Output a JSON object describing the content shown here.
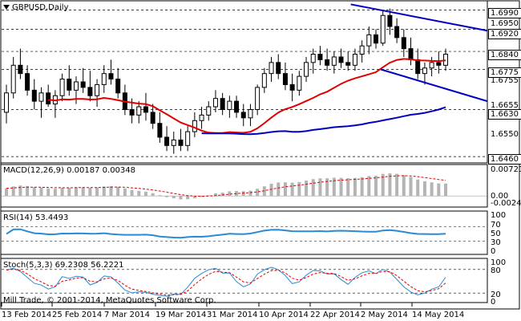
{
  "window": {
    "symbol_title": "GBPUSD,Daily",
    "copyright": "Mill Trade, © 2001-2014, MetaQuotes Software Corp."
  },
  "price_axis": {
    "ticks": [
      "1.6990",
      "1.6950",
      "1.6920",
      "1.6840",
      "1.6775",
      "1.6755",
      "1.6655",
      "1.6630",
      "1.6550",
      "1.6460"
    ],
    "highlighted": [
      "1.6990",
      "1.6920",
      "1.6840",
      "1.6775",
      "1.6630",
      "1.6460"
    ]
  },
  "macd": {
    "label": "MACD(12,26,9) 0.00187 0.00348",
    "ticks": [
      "0.00721",
      "0.00",
      "-0.00243"
    ]
  },
  "rsi": {
    "label": "RSI(14) 53.4493",
    "ticks": [
      "100",
      "70",
      "50",
      "30",
      "0"
    ]
  },
  "stoch": {
    "label": "Stoch(5,3,3) 69.2308 56.2221",
    "ticks": [
      "100",
      "80",
      "20",
      "0"
    ]
  },
  "dates": [
    "13 Feb 2014",
    "25 Feb 2014",
    "7 Mar 2014",
    "19 Mar 2014",
    "31 Mar 2014",
    "10 Apr 2014",
    "22 Apr 2014",
    "2 May 2014",
    "14 May 2014"
  ],
  "colors": {
    "ma_fast": "#e00000",
    "ma_slow": "#0000c0",
    "trend": "#0000c0",
    "rsi": "#2a8ad4",
    "stoch_main": "#2a8ad4",
    "stoch_signal": "#e00000",
    "macd_hist": "#b4b4b4",
    "macd_signal": "#e00000"
  },
  "chart_data": [
    {
      "type": "candlestick",
      "title": "GBPUSD,Daily",
      "ylim": [
        1.644,
        1.702
      ],
      "ohlc": [
        [
          1.662,
          1.672,
          1.658,
          1.669
        ],
        [
          1.669,
          1.682,
          1.667,
          1.679
        ],
        [
          1.679,
          1.685,
          1.674,
          1.676
        ],
        [
          1.676,
          1.679,
          1.668,
          1.67
        ],
        [
          1.67,
          1.674,
          1.663,
          1.666
        ],
        [
          1.666,
          1.671,
          1.66,
          1.669
        ],
        [
          1.669,
          1.672,
          1.664,
          1.665
        ],
        [
          1.665,
          1.67,
          1.66,
          1.668
        ],
        [
          1.668,
          1.676,
          1.666,
          1.674
        ],
        [
          1.674,
          1.679,
          1.668,
          1.67
        ],
        [
          1.67,
          1.675,
          1.665,
          1.673
        ],
        [
          1.673,
          1.678,
          1.669,
          1.671
        ],
        [
          1.671,
          1.677,
          1.666,
          1.668
        ],
        [
          1.668,
          1.674,
          1.664,
          1.672
        ],
        [
          1.672,
          1.679,
          1.669,
          1.676
        ],
        [
          1.676,
          1.681,
          1.672,
          1.674
        ],
        [
          1.674,
          1.678,
          1.667,
          1.669
        ],
        [
          1.669,
          1.672,
          1.661,
          1.663
        ],
        [
          1.663,
          1.667,
          1.658,
          1.661
        ],
        [
          1.661,
          1.666,
          1.658,
          1.664
        ],
        [
          1.664,
          1.669,
          1.659,
          1.662
        ],
        [
          1.662,
          1.665,
          1.656,
          1.658
        ],
        [
          1.658,
          1.662,
          1.651,
          1.653
        ],
        [
          1.653,
          1.657,
          1.648,
          1.65
        ],
        [
          1.65,
          1.655,
          1.647,
          1.652
        ],
        [
          1.652,
          1.656,
          1.648,
          1.65
        ],
        [
          1.65,
          1.657,
          1.648,
          1.655
        ],
        [
          1.655,
          1.662,
          1.653,
          1.659
        ],
        [
          1.659,
          1.664,
          1.656,
          1.661
        ],
        [
          1.661,
          1.666,
          1.659,
          1.664
        ],
        [
          1.664,
          1.67,
          1.662,
          1.667
        ],
        [
          1.667,
          1.669,
          1.661,
          1.663
        ],
        [
          1.663,
          1.668,
          1.66,
          1.666
        ],
        [
          1.666,
          1.668,
          1.66,
          1.662
        ],
        [
          1.662,
          1.665,
          1.657,
          1.66
        ],
        [
          1.66,
          1.665,
          1.657,
          1.663
        ],
        [
          1.663,
          1.672,
          1.661,
          1.671
        ],
        [
          1.671,
          1.678,
          1.669,
          1.676
        ],
        [
          1.676,
          1.682,
          1.673,
          1.68
        ],
        [
          1.68,
          1.683,
          1.674,
          1.676
        ],
        [
          1.676,
          1.68,
          1.67,
          1.672
        ],
        [
          1.672,
          1.676,
          1.666,
          1.67
        ],
        [
          1.67,
          1.677,
          1.668,
          1.675
        ],
        [
          1.675,
          1.682,
          1.673,
          1.68
        ],
        [
          1.68,
          1.685,
          1.676,
          1.683
        ],
        [
          1.683,
          1.686,
          1.679,
          1.681
        ],
        [
          1.681,
          1.685,
          1.677,
          1.679
        ],
        [
          1.679,
          1.684,
          1.676,
          1.682
        ],
        [
          1.682,
          1.685,
          1.678,
          1.68
        ],
        [
          1.68,
          1.684,
          1.677,
          1.679
        ],
        [
          1.679,
          1.685,
          1.677,
          1.683
        ],
        [
          1.683,
          1.688,
          1.68,
          1.686
        ],
        [
          1.686,
          1.693,
          1.683,
          1.69
        ],
        [
          1.69,
          1.692,
          1.685,
          1.687
        ],
        [
          1.687,
          1.699,
          1.686,
          1.697
        ],
        [
          1.697,
          1.6995,
          1.69,
          1.693
        ],
        [
          1.693,
          1.696,
          1.687,
          1.689
        ],
        [
          1.689,
          1.692,
          1.682,
          1.685
        ],
        [
          1.685,
          1.689,
          1.679,
          1.681
        ],
        [
          1.681,
          1.685,
          1.674,
          1.676
        ],
        [
          1.676,
          1.68,
          1.672,
          1.678
        ],
        [
          1.678,
          1.682,
          1.675,
          1.68
        ],
        [
          1.68,
          1.684,
          1.676,
          1.679
        ],
        [
          1.679,
          1.685,
          1.677,
          1.683
        ]
      ],
      "series": [
        {
          "name": "MA fast"
        },
        {
          "name": "MA slow"
        }
      ]
    },
    {
      "type": "bar",
      "title": "MACD(12,26,9) 0.00187 0.00348",
      "ylim": [
        -0.00243,
        0.00721
      ]
    },
    {
      "type": "line",
      "title": "RSI(14) 53.4493",
      "ylim": [
        0,
        100
      ]
    },
    {
      "type": "line",
      "title": "Stoch(5,3,3) 69.2308 56.2221",
      "ylim": [
        0,
        100
      ]
    }
  ]
}
